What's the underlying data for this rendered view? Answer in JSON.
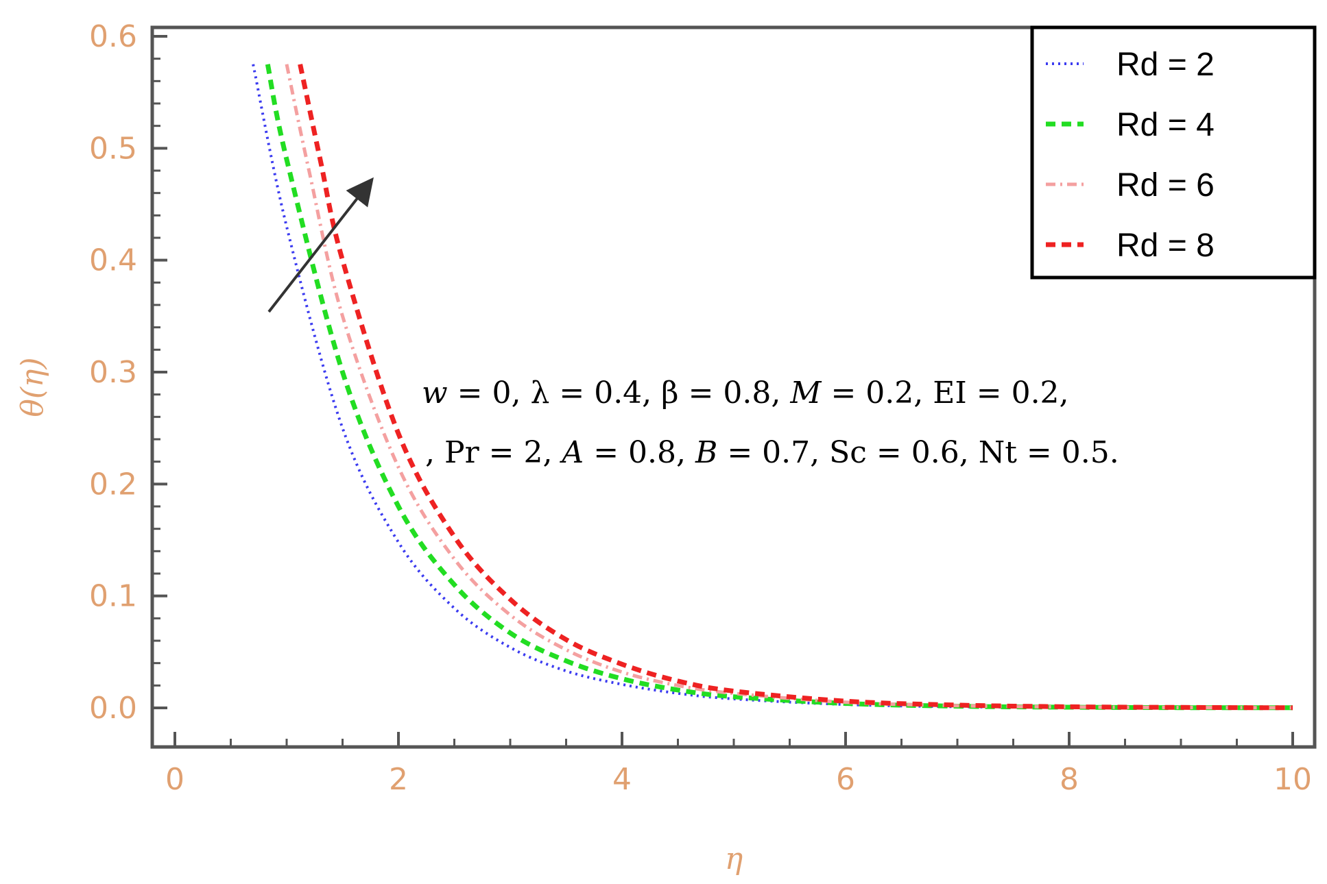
{
  "chart_data": {
    "type": "line",
    "title": "",
    "xlabel": "η",
    "ylabel": "θ(η)",
    "xlim": [
      0,
      10
    ],
    "ylim": [
      0,
      0.6
    ],
    "x_ticks": [
      "0",
      "2",
      "4",
      "6",
      "8",
      "10"
    ],
    "y_ticks": [
      "0.0",
      "0.1",
      "0.2",
      "0.3",
      "0.4",
      "0.5",
      "0.6"
    ],
    "grid": false,
    "legend_position": "top-right",
    "series": [
      {
        "name": "Rd = 2",
        "color": "#3b3bf0",
        "dash": "dotted",
        "x": [
          0.7,
          1.0,
          1.5,
          2.0,
          2.5,
          3.0,
          3.5,
          4.0,
          4.5,
          5.0,
          6.0,
          7.0,
          8.0,
          9.0,
          10.0
        ],
        "y": [
          0.575,
          0.43,
          0.25,
          0.148,
          0.089,
          0.054,
          0.033,
          0.021,
          0.013,
          0.008,
          0.003,
          0.001,
          0.0005,
          0.0002,
          0.0001
        ]
      },
      {
        "name": "Rd = 4",
        "color": "#22dd22",
        "dash": "dashed",
        "x": [
          0.83,
          1.0,
          1.5,
          2.0,
          2.5,
          3.0,
          3.5,
          4.0,
          4.5,
          5.0,
          6.0,
          7.0,
          8.0,
          9.0,
          10.0
        ],
        "y": [
          0.575,
          0.49,
          0.3,
          0.18,
          0.11,
          0.067,
          0.042,
          0.026,
          0.016,
          0.01,
          0.004,
          0.0015,
          0.0006,
          0.0002,
          0.0001
        ]
      },
      {
        "name": "Rd = 6",
        "color": "#f4a0a0",
        "dash": "dashdot",
        "x": [
          1.0,
          1.2,
          1.5,
          2.0,
          2.5,
          3.0,
          3.5,
          4.0,
          4.5,
          5.0,
          6.0,
          7.0,
          8.0,
          9.0,
          10.0
        ],
        "y": [
          0.575,
          0.48,
          0.35,
          0.215,
          0.133,
          0.083,
          0.052,
          0.032,
          0.02,
          0.013,
          0.005,
          0.002,
          0.0008,
          0.0003,
          0.0001
        ]
      },
      {
        "name": "Rd = 8",
        "color": "#ee2222",
        "dash": "dashed",
        "x": [
          1.12,
          1.3,
          1.5,
          2.0,
          2.5,
          3.0,
          3.5,
          4.0,
          4.5,
          5.0,
          6.0,
          7.0,
          8.0,
          9.0,
          10.0
        ],
        "y": [
          0.575,
          0.49,
          0.4,
          0.245,
          0.153,
          0.097,
          0.061,
          0.039,
          0.024,
          0.015,
          0.006,
          0.0025,
          0.001,
          0.0004,
          0.0001
        ]
      }
    ],
    "annotations": [
      "w = 0, λ = 0.4, β = 0.8, M = 0.2, EI = 0.2,",
      ", Pr = 2, A = 0.8, B = 0.7, Sc = 0.6, Nt = 0.5."
    ]
  }
}
